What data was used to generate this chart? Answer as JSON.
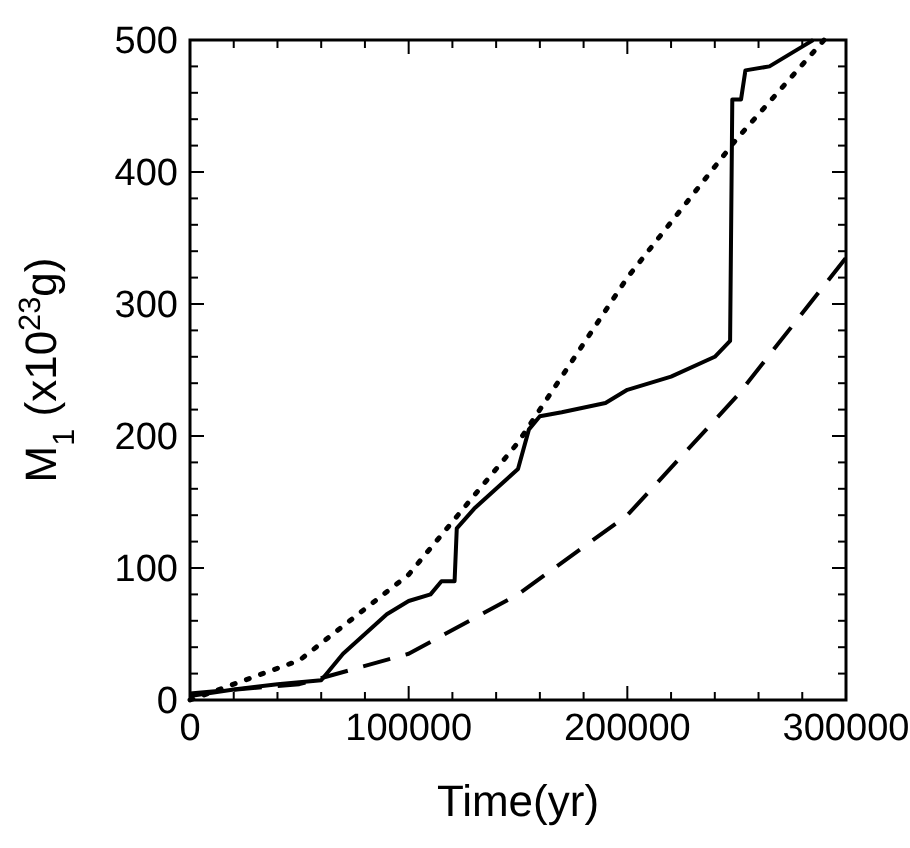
{
  "chart_data": {
    "type": "line",
    "xlabel": "Time(yr)",
    "ylabel": "M$_{1}$ (x10$^{23}$g)",
    "xlim": [
      0,
      300000
    ],
    "ylim": [
      0,
      500
    ],
    "xticks": [
      0,
      {
        "value": 20000,
        "label": null
      },
      {
        "value": 40000,
        "label": null
      },
      {
        "value": 60000,
        "label": null
      },
      {
        "value": 80000,
        "label": null
      },
      100000,
      {
        "value": 120000,
        "label": null
      },
      {
        "value": 140000,
        "label": null
      },
      {
        "value": 160000,
        "label": null
      },
      {
        "value": 180000,
        "label": null
      },
      200000,
      {
        "value": 220000,
        "label": null
      },
      {
        "value": 240000,
        "label": null
      },
      {
        "value": 260000,
        "label": null
      },
      {
        "value": 280000,
        "label": null
      },
      300000
    ],
    "yticks": [
      0,
      {
        "value": 20,
        "label": null
      },
      {
        "value": 40,
        "label": null
      },
      {
        "value": 60,
        "label": null
      },
      {
        "value": 80,
        "label": null
      },
      100,
      {
        "value": 120,
        "label": null
      },
      {
        "value": 140,
        "label": null
      },
      {
        "value": 160,
        "label": null
      },
      {
        "value": 180,
        "label": null
      },
      200,
      {
        "value": 220,
        "label": null
      },
      {
        "value": 240,
        "label": null
      },
      {
        "value": 260,
        "label": null
      },
      {
        "value": 280,
        "label": null
      },
      300,
      {
        "value": 320,
        "label": null
      },
      {
        "value": 340,
        "label": null
      },
      {
        "value": 360,
        "label": null
      },
      {
        "value": 380,
        "label": null
      },
      400,
      {
        "value": 420,
        "label": null
      },
      {
        "value": 440,
        "label": null
      },
      {
        "value": 460,
        "label": null
      },
      {
        "value": 480,
        "label": null
      },
      500
    ],
    "grid": false,
    "marker": "none",
    "series": [
      {
        "color": "#000000",
        "line_style": "solid",
        "x": [
          0,
          20000,
          40000,
          60000,
          70000,
          90000,
          100000,
          110000,
          115000,
          121000,
          122000,
          130000,
          140000,
          150000,
          155000,
          160000,
          170000,
          190000,
          200000,
          220000,
          240000,
          247000,
          248000,
          252000,
          254000,
          265000,
          280000,
          285000
        ],
        "values": [
          3,
          8,
          12,
          15,
          35,
          65,
          75,
          80,
          90,
          90,
          130,
          145,
          160,
          175,
          205,
          215,
          218,
          225,
          235,
          245,
          260,
          272,
          455,
          455,
          477,
          480,
          495,
          500
        ]
      },
      {
        "color": "#000000",
        "line_style": "dotted",
        "x": [
          0,
          50000,
          100000,
          150000,
          200000,
          250000,
          290000
        ],
        "values": [
          0,
          30,
          95,
          195,
          320,
          425,
          500
        ]
      },
      {
        "color": "#000000",
        "line_style": "dashed",
        "x": [
          0,
          50000,
          100000,
          150000,
          200000,
          250000,
          300000
        ],
        "values": [
          5,
          12,
          35,
          80,
          140,
          230,
          335
        ]
      }
    ]
  }
}
